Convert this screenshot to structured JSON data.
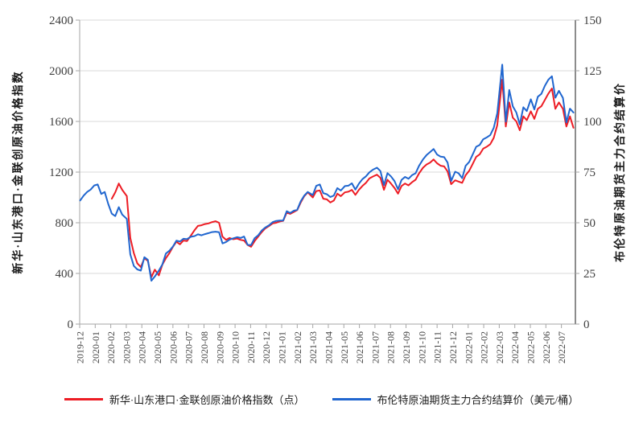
{
  "colors": {
    "grid": "#d9d9d9",
    "axis": "#a6a6a6",
    "text": "#404040",
    "background": "#ffffff",
    "red": "#ed1c24",
    "blue": "#2066cf"
  },
  "chart_data": {
    "type": "line",
    "title": "",
    "legend_position": "bottom",
    "grid": "horizontal",
    "left_axis": {
      "title": "新华·山东港口·金联创原油价格指数",
      "min": 0,
      "max": 2400,
      "step": 400,
      "ticks": [
        "0",
        "400",
        "800",
        "1200",
        "1600",
        "2000",
        "2400"
      ]
    },
    "right_axis": {
      "title": "布伦特原油期货主力合约结算价",
      "min": 0,
      "max": 150,
      "step": 25,
      "ticks": [
        "0",
        "25",
        "50",
        "75",
        "100",
        "125",
        "150"
      ]
    },
    "x_ticks": [
      "2019-12",
      "2020-01",
      "2020-02",
      "2020-03",
      "2020-04",
      "2020-05",
      "2020-06",
      "2020-07",
      "2020-08",
      "2020-09",
      "2020-10",
      "2020-11",
      "2020-12",
      "2021-01",
      "2021-02",
      "2021-03",
      "2021-04",
      "2021-05",
      "2021-06",
      "2021-07",
      "2021-08",
      "2021-09",
      "2021-10",
      "2021-11",
      "2021-12",
      "2022-01",
      "2022-02",
      "2022-03",
      "2022-04",
      "2022-05",
      "2022-06",
      "2022-07"
    ],
    "x": [
      "2019-12-02",
      "2019-12-09",
      "2019-12-16",
      "2019-12-23",
      "2019-12-30",
      "2020-01-06",
      "2020-01-13",
      "2020-01-20",
      "2020-01-27",
      "2020-02-03",
      "2020-02-10",
      "2020-02-17",
      "2020-02-24",
      "2020-03-02",
      "2020-03-09",
      "2020-03-16",
      "2020-03-23",
      "2020-03-30",
      "2020-04-06",
      "2020-04-13",
      "2020-04-20",
      "2020-04-27",
      "2020-05-04",
      "2020-05-11",
      "2020-05-18",
      "2020-05-25",
      "2020-06-01",
      "2020-06-08",
      "2020-06-15",
      "2020-06-22",
      "2020-06-29",
      "2020-07-06",
      "2020-07-13",
      "2020-07-20",
      "2020-07-27",
      "2020-08-03",
      "2020-08-10",
      "2020-08-17",
      "2020-08-24",
      "2020-08-31",
      "2020-09-07",
      "2020-09-14",
      "2020-09-21",
      "2020-09-28",
      "2020-10-05",
      "2020-10-12",
      "2020-10-19",
      "2020-10-26",
      "2020-11-02",
      "2020-11-09",
      "2020-11-16",
      "2020-11-23",
      "2020-11-30",
      "2020-12-07",
      "2020-12-14",
      "2020-12-21",
      "2020-12-28",
      "2021-01-04",
      "2021-01-11",
      "2021-01-18",
      "2021-01-25",
      "2021-02-01",
      "2021-02-08",
      "2021-02-15",
      "2021-02-22",
      "2021-03-01",
      "2021-03-08",
      "2021-03-15",
      "2021-03-22",
      "2021-03-29",
      "2021-04-05",
      "2021-04-12",
      "2021-04-19",
      "2021-04-26",
      "2021-05-03",
      "2021-05-10",
      "2021-05-17",
      "2021-05-24",
      "2021-05-31",
      "2021-06-07",
      "2021-06-14",
      "2021-06-21",
      "2021-06-28",
      "2021-07-05",
      "2021-07-12",
      "2021-07-19",
      "2021-07-26",
      "2021-08-02",
      "2021-08-09",
      "2021-08-16",
      "2021-08-23",
      "2021-08-30",
      "2021-09-06",
      "2021-09-13",
      "2021-09-20",
      "2021-09-27",
      "2021-10-04",
      "2021-10-11",
      "2021-10-18",
      "2021-10-25",
      "2021-11-01",
      "2021-11-08",
      "2021-11-15",
      "2021-11-22",
      "2021-11-29",
      "2021-12-06",
      "2021-12-13",
      "2021-12-20",
      "2021-12-27",
      "2022-01-03",
      "2022-01-10",
      "2022-01-17",
      "2022-01-24",
      "2022-01-31",
      "2022-02-07",
      "2022-02-14",
      "2022-02-21",
      "2022-02-28",
      "2022-03-07",
      "2022-03-14",
      "2022-03-21",
      "2022-03-28",
      "2022-04-04",
      "2022-04-11",
      "2022-04-18",
      "2022-04-25",
      "2022-05-02",
      "2022-05-09",
      "2022-05-16",
      "2022-05-23",
      "2022-05-30",
      "2022-06-06",
      "2022-06-13",
      "2022-06-20",
      "2022-06-27",
      "2022-07-04",
      "2022-07-11",
      "2022-07-18",
      "2022-07-25"
    ],
    "series": [
      {
        "name": "新华·山东港口·金联创原油价格指数（点）",
        "color": "#ed1c24",
        "axis": "left",
        "values": [
          null,
          null,
          null,
          null,
          null,
          null,
          null,
          null,
          null,
          990,
          1040,
          1110,
          1060,
          1010,
          680,
          560,
          480,
          450,
          520,
          500,
          370,
          430,
          385,
          470,
          520,
          560,
          610,
          650,
          630,
          660,
          655,
          700,
          740,
          775,
          780,
          790,
          795,
          805,
          812,
          800,
          690,
          665,
          680,
          670,
          675,
          665,
          660,
          625,
          610,
          655,
          690,
          725,
          755,
          775,
          795,
          800,
          810,
          815,
          880,
          870,
          885,
          900,
          960,
          1010,
          1040,
          1000,
          1050,
          1055,
          990,
          985,
          960,
          975,
          1030,
          1010,
          1040,
          1045,
          1060,
          1020,
          1060,
          1090,
          1115,
          1150,
          1165,
          1180,
          1155,
          1060,
          1140,
          1110,
          1075,
          1030,
          1090,
          1110,
          1095,
          1120,
          1140,
          1190,
          1235,
          1260,
          1275,
          1300,
          1270,
          1250,
          1245,
          1205,
          1105,
          1135,
          1125,
          1115,
          1175,
          1210,
          1265,
          1320,
          1340,
          1385,
          1400,
          1420,
          1470,
          1570,
          1930,
          1560,
          1750,
          1630,
          1600,
          1530,
          1640,
          1610,
          1680,
          1620,
          1700,
          1720,
          1770,
          1820,
          1860,
          1700,
          1750,
          1700,
          1560,
          1640,
          1550
        ]
      },
      {
        "name": "布伦特原油期货主力合约结算价（美元/桶）",
        "color": "#2066cf",
        "axis": "right",
        "values": [
          61.0,
          63.4,
          65.2,
          66.4,
          68.4,
          68.9,
          64.2,
          65.2,
          59.3,
          54.5,
          53.3,
          57.7,
          54.0,
          51.9,
          34.4,
          28.7,
          27.0,
          26.4,
          33.0,
          31.7,
          21.4,
          23.5,
          26.4,
          29.5,
          34.8,
          36.2,
          38.3,
          41.2,
          40.7,
          42.1,
          41.9,
          43.1,
          43.4,
          44.3,
          43.8,
          44.4,
          44.9,
          45.4,
          45.6,
          45.3,
          39.8,
          40.5,
          41.7,
          42.3,
          42.9,
          42.5,
          43.2,
          39.1,
          39.0,
          42.4,
          43.8,
          46.1,
          47.6,
          48.8,
          50.3,
          50.9,
          51.1,
          51.1,
          55.7,
          54.8,
          55.9,
          56.4,
          60.6,
          63.4,
          65.2,
          63.7,
          68.2,
          68.9,
          64.6,
          64.1,
          62.7,
          63.4,
          67.1,
          65.9,
          68.1,
          68.3,
          69.5,
          66.4,
          69.3,
          71.5,
          72.9,
          74.9,
          76.2,
          77.2,
          75.5,
          68.6,
          74.5,
          72.9,
          70.6,
          66.5,
          71.1,
          72.6,
          71.7,
          73.5,
          74.4,
          78.1,
          81.3,
          83.4,
          84.9,
          86.4,
          83.7,
          82.6,
          82.4,
          79.7,
          70.6,
          75.2,
          74.4,
          72.0,
          78.1,
          80.0,
          83.7,
          87.5,
          88.4,
          91.2,
          92.1,
          93.3,
          96.8,
          104.0,
          128.0,
          99.9,
          115.5,
          107.5,
          104.4,
          98.5,
          107.0,
          105.1,
          110.9,
          105.9,
          112.2,
          113.6,
          117.6,
          120.6,
          122.3,
          111.7,
          115.1,
          111.6,
          99.5,
          106.3,
          104.4
        ]
      }
    ]
  }
}
